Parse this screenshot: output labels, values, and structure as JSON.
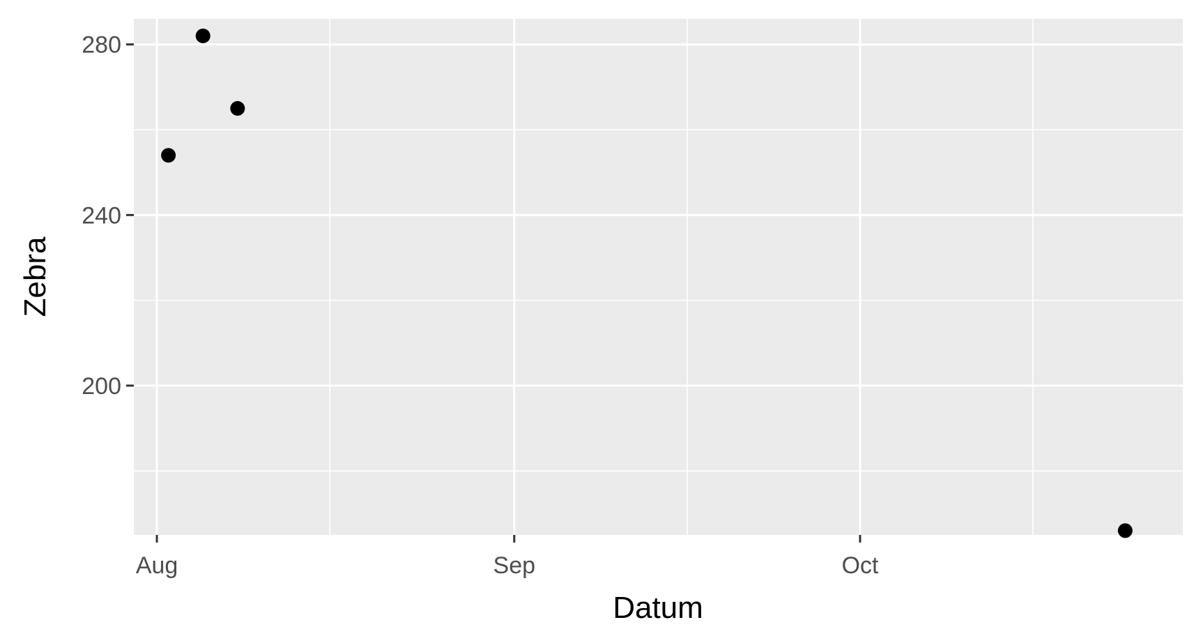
{
  "chart_data": {
    "type": "scatter",
    "title": "",
    "xlabel": "Datum",
    "ylabel": "Zebra",
    "x_axis_type": "date",
    "xlim": [
      "2024-07-30",
      "2024-10-29"
    ],
    "ylim": [
      165,
      286
    ],
    "x_ticks": [
      {
        "label": "Aug",
        "value": "2024-08-01"
      },
      {
        "label": "Sep",
        "value": "2024-09-01"
      },
      {
        "label": "Oct",
        "value": "2024-10-01"
      }
    ],
    "x_minor_ticks": [
      "2024-08-16",
      "2024-09-16",
      "2024-10-16"
    ],
    "y_ticks": [
      {
        "label": "200",
        "value": 200
      },
      {
        "label": "240",
        "value": 240
      },
      {
        "label": "280",
        "value": 280
      }
    ],
    "y_minor_ticks": [
      180,
      220,
      260
    ],
    "grid": true,
    "legend": "none",
    "colors": {
      "panel": "#ebebeb",
      "grid": "#ffffff",
      "point": "#000000",
      "tick": "#333333"
    },
    "series": [
      {
        "points": [
          {
            "x": "2024-08-02",
            "y": 254
          },
          {
            "x": "2024-08-05",
            "y": 282
          },
          {
            "x": "2024-08-08",
            "y": 265
          },
          {
            "x": "2024-10-24",
            "y": 166
          }
        ]
      }
    ]
  }
}
